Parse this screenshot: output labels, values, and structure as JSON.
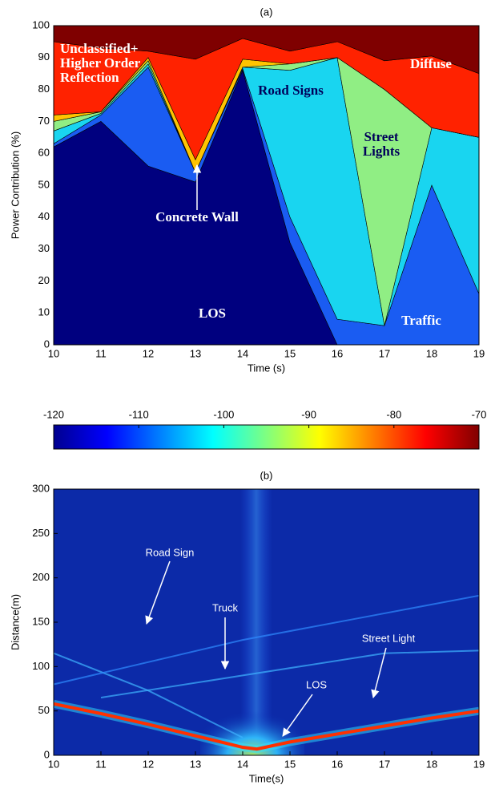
{
  "chart_data": [
    {
      "type": "area",
      "title": "(a)",
      "x_label": "Time (s)",
      "y_label": "Power Contribution (%)",
      "x": [
        10,
        11,
        12,
        13,
        14,
        15,
        16,
        17,
        18,
        19
      ],
      "xlim": [
        10,
        19
      ],
      "xticks": [
        10,
        11,
        12,
        13,
        14,
        15,
        16,
        17,
        18,
        19
      ],
      "ylim": [
        0,
        100
      ],
      "yticks": [
        0,
        10,
        20,
        30,
        40,
        50,
        60,
        70,
        80,
        90,
        100
      ],
      "series": [
        {
          "name": "LOS",
          "color": "#00007f",
          "values": [
            62,
            70,
            56,
            51,
            86,
            32,
            0,
            0,
            0,
            0
          ]
        },
        {
          "name": "Traffic",
          "color": "#1a5cf2",
          "values": [
            1,
            2,
            31,
            3,
            0.5,
            8,
            8,
            6,
            50,
            16
          ]
        },
        {
          "name": "Road Signs",
          "color": "#19d5f0",
          "values": [
            4,
            0.5,
            1,
            0,
            0.5,
            46,
            82,
            0,
            18,
            49
          ]
        },
        {
          "name": "Street Lights",
          "color": "#90ee84",
          "values": [
            3,
            0.5,
            1,
            0,
            0,
            2,
            0,
            74,
            0,
            0
          ]
        },
        {
          "name": "Concrete Wall",
          "color": "#ffc400",
          "values": [
            2,
            0,
            1,
            4,
            2.5,
            0,
            0,
            0,
            0,
            0
          ]
        },
        {
          "name": "Unclassified+ Higher Order Reflection",
          "color": "#ff2200",
          "values": [
            23,
            20,
            2,
            31.5,
            6.5,
            4,
            5,
            9,
            22.5,
            20
          ]
        },
        {
          "name": "Diffuse",
          "color": "#7f0000",
          "values": [
            5,
            7,
            8,
            10.5,
            4,
            8,
            5,
            11,
            9.5,
            15
          ]
        }
      ]
    },
    {
      "type": "colorbar",
      "xlim": [
        -120,
        -70
      ],
      "xticks": [
        -120,
        -110,
        -100,
        -90,
        -80,
        -70
      ]
    },
    {
      "type": "heatmap",
      "title": "(b)",
      "x_label": "Time(s)",
      "y_label": "Distance(m)",
      "xlim": [
        10,
        19
      ],
      "xticks": [
        10,
        11,
        12,
        13,
        14,
        15,
        16,
        17,
        18,
        19
      ],
      "ylim": [
        0,
        300
      ],
      "yticks": [
        0,
        50,
        100,
        150,
        200,
        250,
        300
      ],
      "annotations": [
        "Road Sign",
        "Truck",
        "Street Light",
        "LOS"
      ],
      "series": [
        {
          "color": "#3fb4ff",
          "x": [
            10,
            12,
            14
          ],
          "values": [
            115,
            73,
            20
          ]
        },
        {
          "color": "#2f8cff",
          "x": [
            10,
            14,
            17,
            19
          ],
          "values": [
            80,
            130,
            160,
            180
          ]
        },
        {
          "color": "#3fb4ff",
          "x": [
            11,
            14,
            17,
            19
          ],
          "values": [
            65,
            90,
            115,
            118
          ]
        },
        {
          "color": "#e8d020",
          "x": [
            10,
            11,
            12,
            13,
            14,
            14.3,
            15,
            16,
            17,
            18,
            19
          ],
          "values": [
            58,
            47,
            35,
            22,
            9,
            7,
            15,
            24,
            33,
            42,
            50
          ]
        }
      ]
    }
  ]
}
